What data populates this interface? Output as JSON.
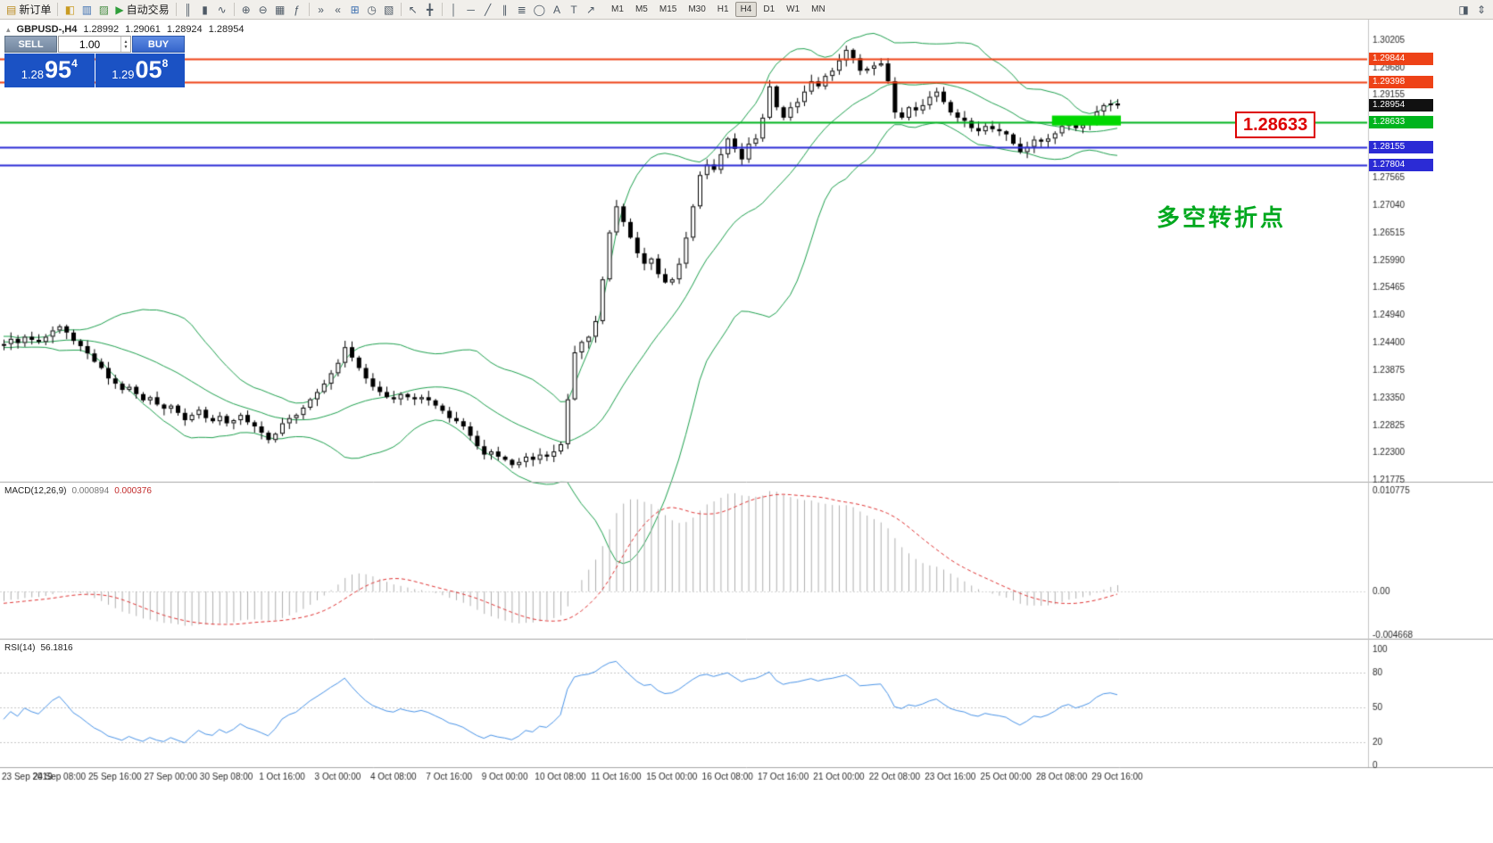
{
  "toolbar": {
    "groups": [
      {
        "name": "order",
        "items": [
          {
            "name": "new-order-button",
            "glyph": "▤",
            "label": "新订单",
            "color": "#b98a1e"
          }
        ]
      },
      {
        "name": "panels",
        "items": [
          {
            "name": "market-watch-icon",
            "glyph": "◧",
            "color": "#c99b22"
          },
          {
            "name": "data-window-icon",
            "glyph": "▥",
            "color": "#3d6fb0"
          },
          {
            "name": "navigator-icon",
            "glyph": "▨",
            "color": "#4b8f46"
          },
          {
            "name": "auto-trading-button",
            "glyph": "▶",
            "label": "自动交易",
            "color": "#2f9e3a"
          }
        ]
      },
      {
        "name": "chart-types",
        "items": [
          {
            "name": "bar-chart-icon",
            "glyph": "║"
          },
          {
            "name": "candlestick-chart-icon",
            "glyph": "▮"
          },
          {
            "name": "line-chart-icon",
            "glyph": "∿"
          }
        ]
      },
      {
        "name": "zoom",
        "items": [
          {
            "name": "zoom-in-icon",
            "glyph": "⊕"
          },
          {
            "name": "zoom-out-icon",
            "glyph": "⊖"
          },
          {
            "name": "tile-windows-icon",
            "glyph": "▦"
          },
          {
            "name": "indicators-icon",
            "glyph": "ƒ"
          }
        ]
      },
      {
        "name": "scroll",
        "items": [
          {
            "name": "auto-scroll-icon",
            "glyph": "»"
          },
          {
            "name": "chart-shift-icon",
            "glyph": "«"
          },
          {
            "name": "new-chart-icon",
            "glyph": "⊞",
            "color": "#3d6fb0"
          },
          {
            "name": "period-clock-icon",
            "glyph": "◷"
          },
          {
            "name": "templates-icon",
            "glyph": "▧"
          }
        ]
      },
      {
        "name": "cursor",
        "items": [
          {
            "name": "cursor-icon",
            "glyph": "↖"
          },
          {
            "name": "crosshair-icon",
            "glyph": "╋"
          }
        ]
      },
      {
        "name": "draw",
        "items": [
          {
            "name": "vertical-line-icon",
            "glyph": "│"
          },
          {
            "name": "horizontal-line-icon",
            "glyph": "─"
          },
          {
            "name": "trendline-icon",
            "glyph": "╱"
          },
          {
            "name": "channel-icon",
            "glyph": "∥"
          },
          {
            "name": "fibonacci-icon",
            "glyph": "≣"
          },
          {
            "name": "shapes-icon",
            "glyph": "◯"
          },
          {
            "name": "text-icon",
            "glyph": "A"
          },
          {
            "name": "text-label-icon",
            "glyph": "T"
          },
          {
            "name": "arrows-icon",
            "glyph": "↗"
          }
        ]
      }
    ],
    "timeframes": [
      "M1",
      "M5",
      "M15",
      "M30",
      "H1",
      "H4",
      "D1",
      "W1",
      "MN"
    ],
    "active_timeframe": "H4",
    "right_icons": [
      {
        "name": "docking-icon",
        "glyph": "◨"
      },
      {
        "name": "scroll-mode-icon",
        "glyph": "⇕"
      }
    ]
  },
  "chart_header": {
    "symbol_period": "GBPUSD-,H4",
    "open": "1.28992",
    "high": "1.29061",
    "low": "1.28924",
    "close": "1.28954"
  },
  "trade_panel": {
    "sell_label": "SELL",
    "buy_label": "BUY",
    "volume": "1.00",
    "sell_price": {
      "prefix": "1.28",
      "big": "95",
      "sup": "4"
    },
    "buy_price": {
      "prefix": "1.29",
      "big": "05",
      "sup": "8"
    }
  },
  "annotations": {
    "level_callout": "1.28633",
    "turning_point": "多空转折点"
  },
  "indicators": {
    "macd_name": "MACD(12,26,9)",
    "macd_value": "0.000894",
    "macd_signal_value": "0.000376",
    "rsi_name": "RSI(14)",
    "rsi_value": "56.1816"
  },
  "chart_data": {
    "type": "candlestick",
    "symbol": "GBPUSD-",
    "timeframe": "H4",
    "warmup_count": 40,
    "closes": [
      1.2528,
      1.2522,
      1.253,
      1.2518,
      1.251,
      1.2515,
      1.2505,
      1.2498,
      1.2502,
      1.2492,
      1.2485,
      1.249,
      1.248,
      1.2472,
      1.2478,
      1.2468,
      1.2462,
      1.247,
      1.246,
      1.2452,
      1.2458,
      1.2448,
      1.2455,
      1.2445,
      1.245,
      1.2442,
      1.2448,
      1.2438,
      1.2444,
      1.2436,
      1.244,
      1.2434,
      1.2442,
      1.2438,
      1.2446,
      1.244,
      1.2436,
      1.2444,
      1.244,
      1.2436,
      1.2438,
      1.2448,
      1.244,
      1.2452,
      1.2446,
      1.2442,
      1.2452,
      1.2464,
      1.2472,
      1.246,
      1.2444,
      1.2434,
      1.242,
      1.2404,
      1.2392,
      1.2372,
      1.2362,
      1.235,
      1.2356,
      1.2342,
      1.233,
      1.2336,
      1.2322,
      1.2314,
      1.232,
      1.2306,
      1.2292,
      1.2302,
      1.2312,
      1.2296,
      1.229,
      1.23,
      1.2286,
      1.2292,
      1.2302,
      1.2288,
      1.228,
      1.2268,
      1.2254,
      1.2266,
      1.2286,
      1.2296,
      1.2302,
      1.2316,
      1.2332,
      1.2346,
      1.2362,
      1.2382,
      1.2402,
      1.2432,
      1.2412,
      1.2392,
      1.2372,
      1.2356,
      1.2346,
      1.2336,
      1.2332,
      1.2342,
      1.2336,
      1.2332,
      1.2336,
      1.233,
      1.232,
      1.231,
      1.2296,
      1.229,
      1.228,
      1.2262,
      1.2242,
      1.2226,
      1.2232,
      1.2222,
      1.2216,
      1.2206,
      1.2212,
      1.2222,
      1.2216,
      1.2226,
      1.2222,
      1.2232,
      1.2246,
      1.2332,
      1.2422,
      1.2442,
      1.2452,
      1.2482,
      1.2562,
      1.2652,
      1.2702,
      1.2672,
      1.2642,
      1.2612,
      1.2592,
      1.2602,
      1.2572,
      1.2556,
      1.2562,
      1.2592,
      1.2642,
      1.2702,
      1.2762,
      1.2782,
      1.2772,
      1.2802,
      1.2832,
      1.2812,
      1.2792,
      1.2822,
      1.2832,
      1.2872,
      1.2932,
      1.2892,
      1.2872,
      1.2892,
      1.2902,
      1.2922,
      1.2942,
      1.2932,
      1.2952,
      1.2962,
      1.2982,
      1.3002,
      1.2986,
      1.2962,
      1.2966,
      1.2972,
      1.2976,
      1.2942,
      1.2882,
      1.2872,
      1.2892,
      1.2886,
      1.2896,
      1.2912,
      1.2922,
      1.2902,
      1.2882,
      1.2872,
      1.2866,
      1.2852,
      1.2846,
      1.2856,
      1.285,
      1.2846,
      1.284,
      1.2822,
      1.2806,
      1.2816,
      1.283,
      1.2826,
      1.2832,
      1.2842,
      1.2856,
      1.2862,
      1.2852,
      1.2858,
      1.2866,
      1.2884,
      1.2896,
      1.28992,
      1.28954
    ],
    "bollinger": {
      "period": 20,
      "deviation": 2
    },
    "macd": {
      "fast": 12,
      "slow": 26,
      "signal": 9
    },
    "rsi": {
      "period": 14
    },
    "colors": {
      "bollinger": "#1fa14f",
      "macd_histogram": "#b0b0b0",
      "macd_signal": "#e03434",
      "rsi": "#4a94e8",
      "candle_up": "#ffffff",
      "candle_down": "#000000",
      "level_red": "#ee4217",
      "level_blue": "#2b2bd5",
      "level_green": "#00b41e",
      "highlight_green": "#00d800"
    },
    "levels": [
      {
        "price": 1.29844,
        "color": "#ee4217",
        "width": 2
      },
      {
        "price": 1.29398,
        "color": "#ee4217",
        "width": 2
      },
      {
        "price": 1.28633,
        "color": "#00b41e",
        "width": 2
      },
      {
        "price": 1.28155,
        "color": "#2b2bd5",
        "width": 2
      },
      {
        "price": 1.27804,
        "color": "#2b2bd5",
        "width": 2
      }
    ],
    "price_tags": [
      {
        "text": "1.29844",
        "price": 1.29844,
        "bg": "#ee4217"
      },
      {
        "text": "1.29398",
        "price": 1.29398,
        "bg": "#ee4217"
      },
      {
        "text": "1.28954",
        "price": 1.28954,
        "bg": "#111111"
      },
      {
        "text": "1.28633",
        "price": 1.28633,
        "bg": "#00b41e"
      },
      {
        "text": "1.28155",
        "price": 1.28155,
        "bg": "#2b2bd5"
      },
      {
        "text": "1.27804",
        "price": 1.27804,
        "bg": "#2b2bd5"
      }
    ],
    "highlight": {
      "from_index": 151,
      "to_index": 160,
      "price_top": 1.2876,
      "price_bottom": 1.2857,
      "color": "#00d800"
    },
    "price_axis": {
      "pmax": 1.306,
      "pmin": 1.2174,
      "labels": [
        "1.30205",
        "1.29680",
        "1.29155",
        "1.28630",
        "1.28105",
        "1.27565",
        "1.27040",
        "1.26515",
        "1.25990",
        "1.25465",
        "1.24940",
        "1.24400",
        "1.23875",
        "1.23350",
        "1.22825",
        "1.22300",
        "1.21775"
      ]
    },
    "macd_axis": {
      "labels": [
        "0.010775",
        "0.00",
        "-0.004668"
      ],
      "vmax": 0.010775,
      "vmin": -0.004668
    },
    "rsi_axis": {
      "labels": [
        "100",
        "80",
        "50",
        "20",
        "0"
      ],
      "levels": [
        80,
        50,
        20
      ]
    },
    "time_axis": [
      "23 Sep 2019",
      "24 Sep 08:00",
      "25 Sep 16:00",
      "27 Sep 00:00",
      "30 Sep 08:00",
      "1 Oct 16:00",
      "3 Oct 00:00",
      "4 Oct 08:00",
      "7 Oct 16:00",
      "9 Oct 00:00",
      "10 Oct 08:00",
      "11 Oct 16:00",
      "15 Oct 00:00",
      "16 Oct 08:00",
      "17 Oct 16:00",
      "21 Oct 00:00",
      "22 Oct 08:00",
      "23 Oct 16:00",
      "25 Oct 00:00",
      "28 Oct 08:00",
      "29 Oct 16:00"
    ]
  }
}
